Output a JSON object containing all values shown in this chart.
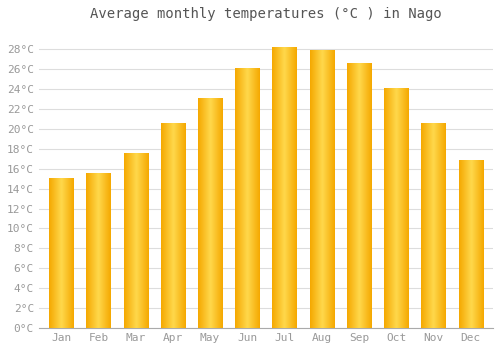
{
  "title": "Average monthly temperatures (°C ) in Nago",
  "months": [
    "Jan",
    "Feb",
    "Mar",
    "Apr",
    "May",
    "Jun",
    "Jul",
    "Aug",
    "Sep",
    "Oct",
    "Nov",
    "Dec"
  ],
  "values": [
    15.0,
    15.5,
    17.5,
    20.5,
    23.0,
    26.0,
    28.1,
    27.8,
    26.5,
    24.0,
    20.5,
    16.8
  ],
  "bar_color_edge": "#F5A800",
  "bar_color_center": "#FFD84C",
  "background_color": "#FFFFFF",
  "grid_color": "#DDDDDD",
  "ytick_labels": [
    "0°C",
    "2°C",
    "4°C",
    "6°C",
    "8°C",
    "10°C",
    "12°C",
    "14°C",
    "16°C",
    "18°C",
    "20°C",
    "22°C",
    "24°C",
    "26°C",
    "28°C"
  ],
  "ytick_values": [
    0,
    2,
    4,
    6,
    8,
    10,
    12,
    14,
    16,
    18,
    20,
    22,
    24,
    26,
    28
  ],
  "ylim": [
    0,
    30
  ],
  "title_fontsize": 10,
  "tick_fontsize": 8,
  "title_color": "#555555",
  "tick_color": "#999999"
}
